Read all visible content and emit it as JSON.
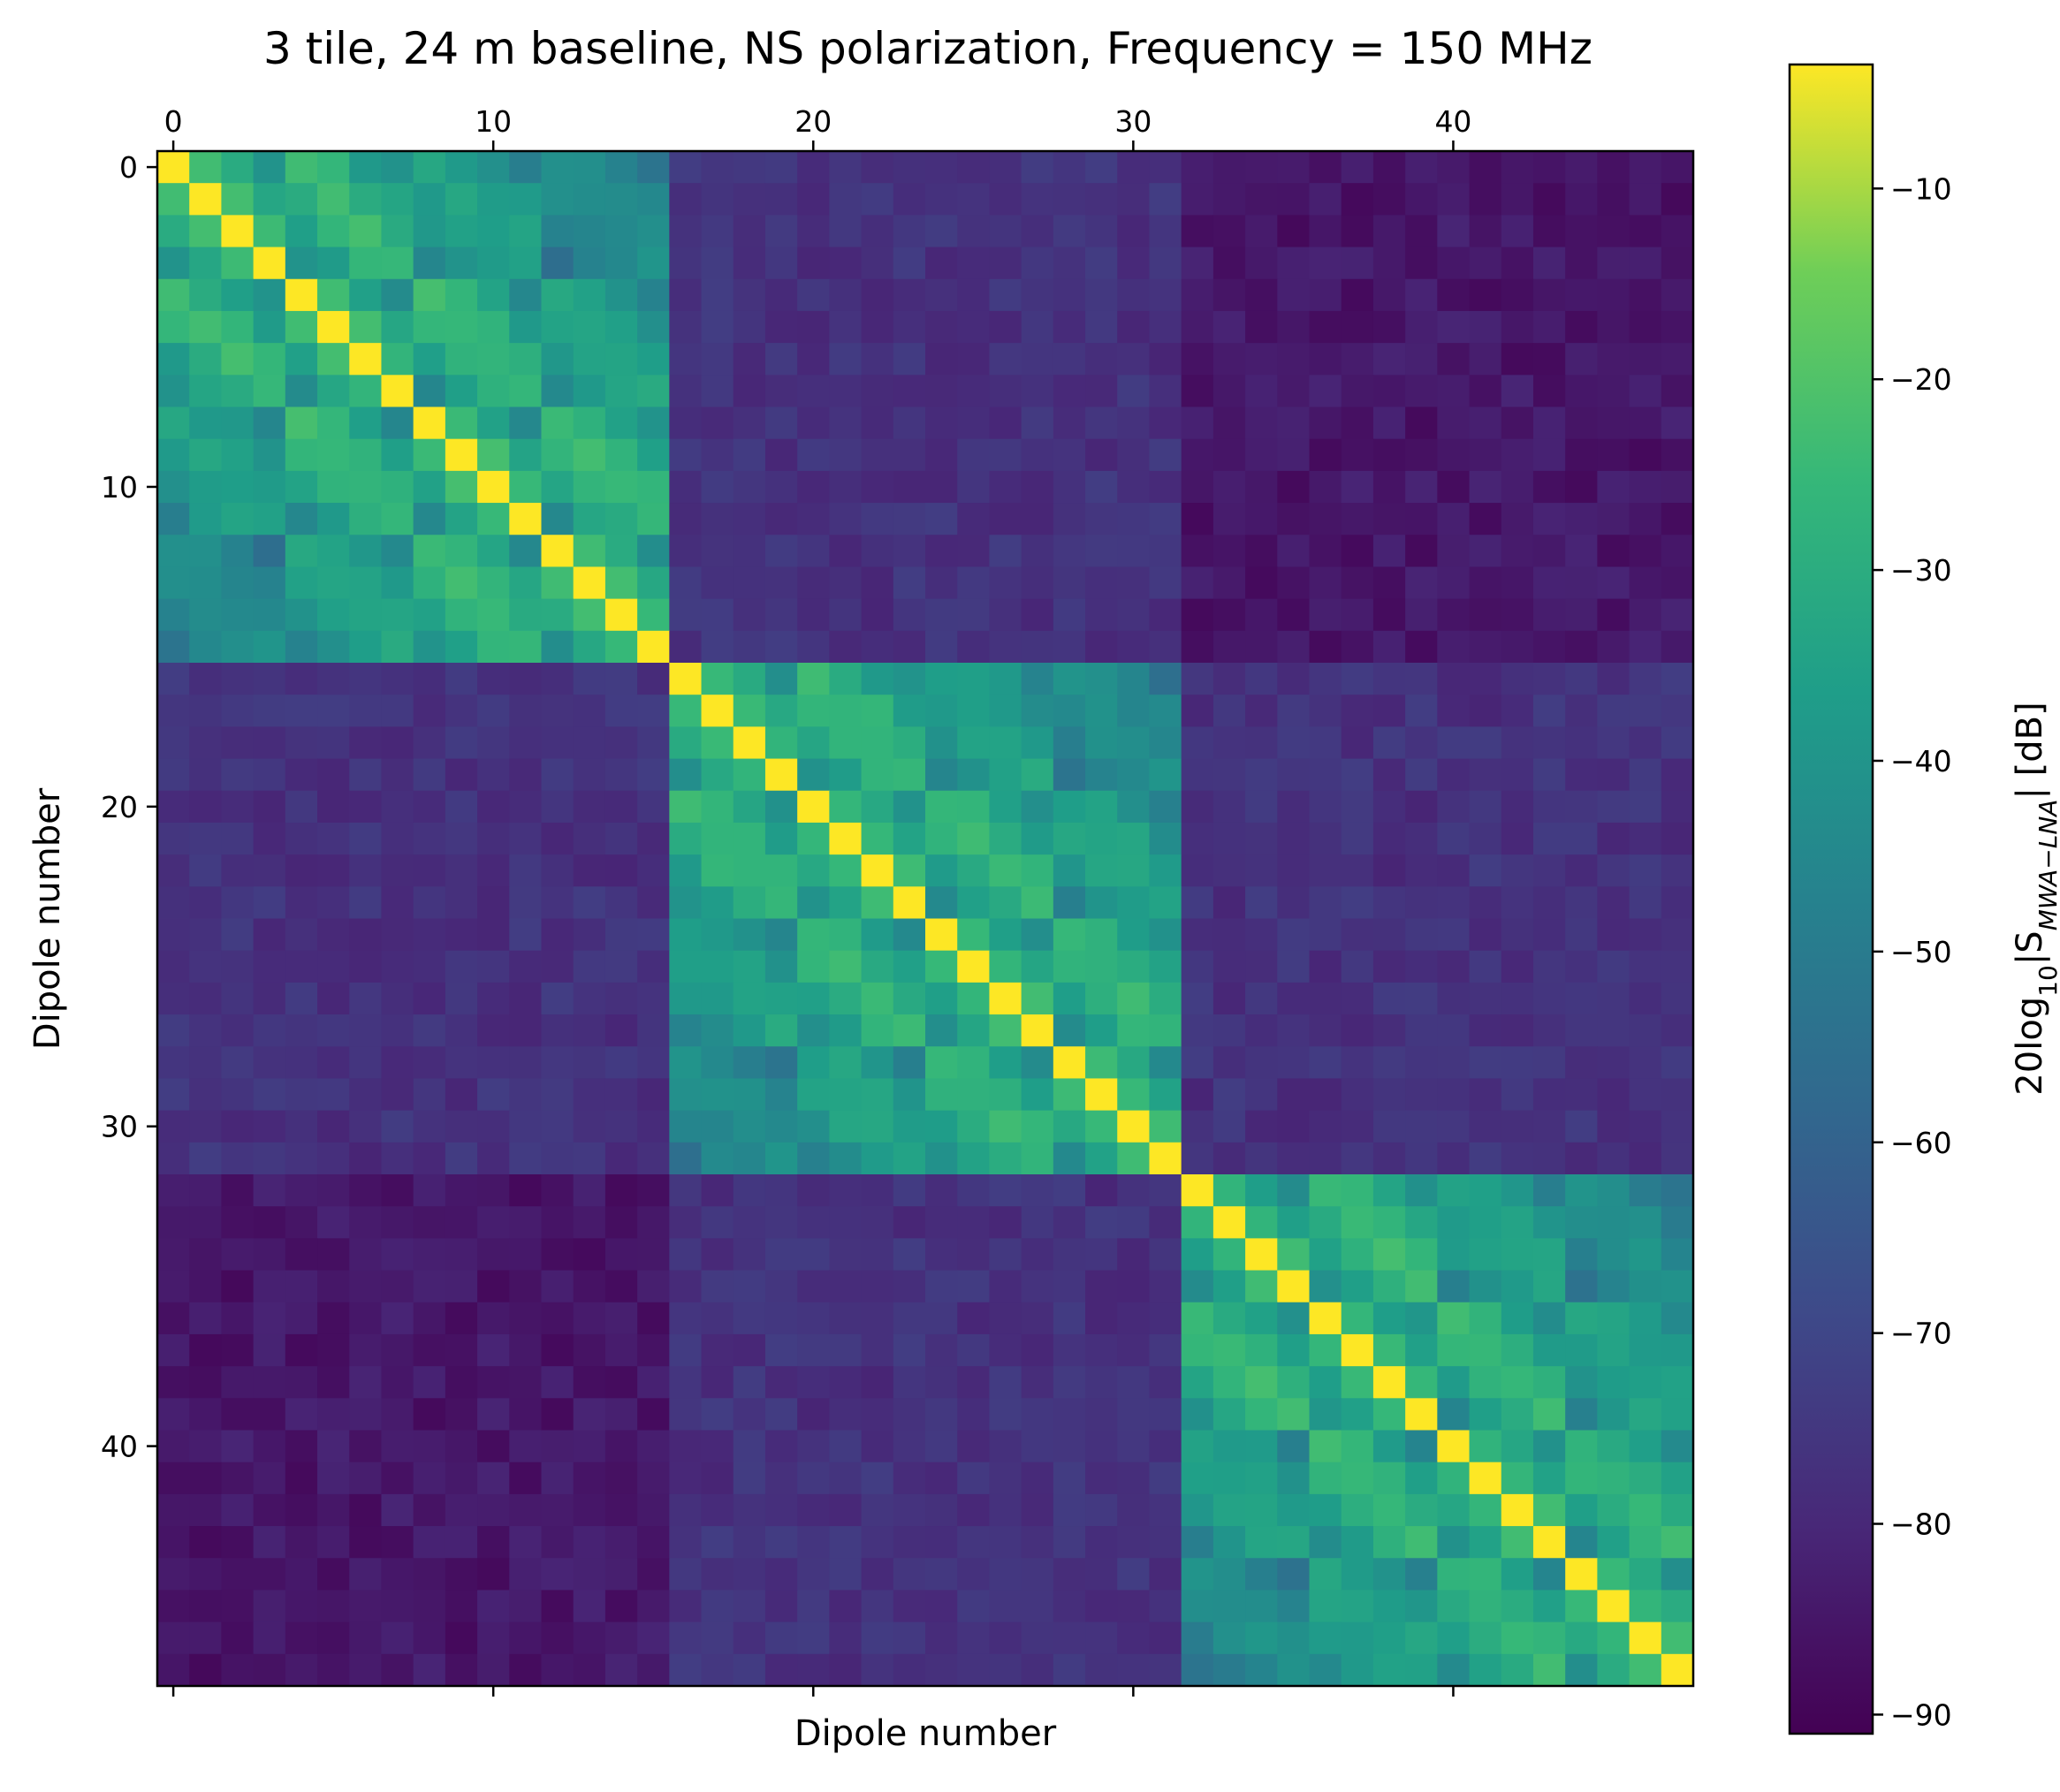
{
  "chart_data": {
    "type": "heatmap",
    "title": "3 tile, 24 m baseline, NS polarization, Frequency = 150 MHz",
    "xlabel": "Dipole number",
    "ylabel": "Dipole number",
    "n_dipoles": 48,
    "tile_size": 16,
    "x_ticks": [
      0,
      10,
      20,
      30,
      40
    ],
    "y_ticks": [
      0,
      10,
      20,
      30,
      40
    ],
    "colormap": "viridis",
    "colorbar": {
      "label_prefix": "20log",
      "label_log_base": "10",
      "label_var": "|S",
      "label_sub": "MWA−LNA",
      "label_suffix": "| [dB]",
      "vmin": -91,
      "vmax": -3.5,
      "ticks": [
        -10,
        -20,
        -30,
        -40,
        -50,
        -60,
        -70,
        -80,
        -90
      ],
      "tick_labels": [
        "−10",
        "−20",
        "−30",
        "−40",
        "−50",
        "−60",
        "−70",
        "−80",
        "−90"
      ]
    },
    "model": {
      "diagonal_db": -3.5,
      "same_tile_near_db": -22,
      "same_tile_far_db": -52,
      "adjacent_tile_db": -77,
      "far_tile_db": -85
    },
    "colors": [
      "#440154",
      "#3b528b",
      "#21918c",
      "#5ec962",
      "#fde725"
    ]
  }
}
